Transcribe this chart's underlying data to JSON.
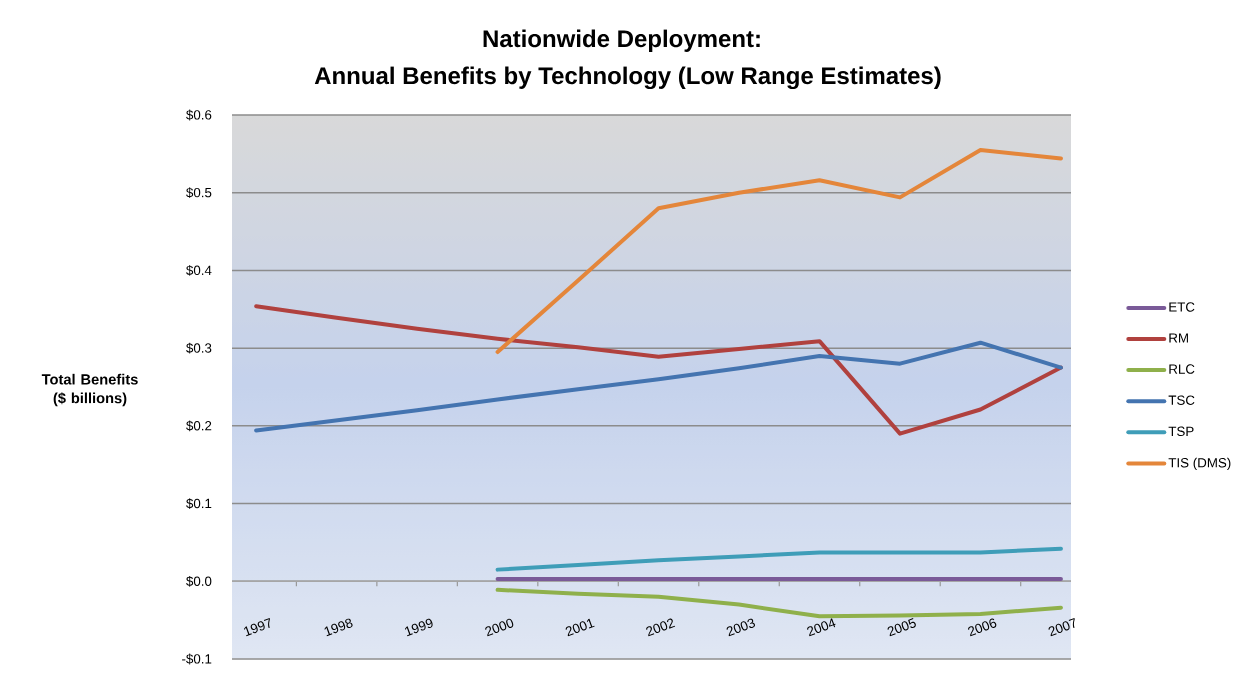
{
  "chart_data": {
    "type": "line",
    "title": "Nationwide Deployment:",
    "subtitle": "Annual Benefits by Technology (Low Range Estimates)",
    "ylabel": "Total Benefits ($ billions)",
    "categories": [
      "1997",
      "1998",
      "1999",
      "2000",
      "2001",
      "2002",
      "2003",
      "2004",
      "2005",
      "2006",
      "2007"
    ],
    "series": [
      {
        "name": "ETC",
        "color": "#7a5a98",
        "values": [
          null,
          null,
          null,
          0.003,
          0.003,
          0.003,
          0.003,
          0.003,
          0.003,
          0.003,
          0.003
        ]
      },
      {
        "name": "RM",
        "color": "#b0413e",
        "values": [
          0.354,
          0.339,
          0.325,
          0.312,
          0.301,
          0.289,
          0.299,
          0.309,
          0.19,
          0.221,
          0.275
        ]
      },
      {
        "name": "RLC",
        "color": "#8fb04b",
        "values": [
          null,
          null,
          null,
          -0.011,
          -0.016,
          -0.02,
          -0.03,
          -0.045,
          -0.044,
          -0.042,
          -0.034
        ]
      },
      {
        "name": "TSC",
        "color": "#4474b0",
        "values": [
          0.194,
          0.207,
          0.22,
          0.234,
          0.247,
          0.26,
          0.274,
          0.29,
          0.28,
          0.307,
          0.275
        ]
      },
      {
        "name": "TSP",
        "color": "#3f9db8",
        "values": [
          null,
          null,
          null,
          0.015,
          0.021,
          0.027,
          0.032,
          0.037,
          0.037,
          0.037,
          0.042
        ]
      },
      {
        "name": "TIS (DMS)",
        "color": "#e4863a",
        "values": [
          null,
          null,
          null,
          0.295,
          0.387,
          0.48,
          0.5,
          0.516,
          0.494,
          0.555,
          0.544
        ]
      }
    ],
    "ylim": [
      -0.1,
      0.6
    ],
    "yticks": [
      {
        "value": -0.1,
        "label": "-$0.1"
      },
      {
        "value": 0.0,
        "label": "$0.0"
      },
      {
        "value": 0.1,
        "label": "$0.1"
      },
      {
        "value": 0.2,
        "label": "$0.2"
      },
      {
        "value": 0.3,
        "label": "$0.3"
      },
      {
        "value": 0.4,
        "label": "$0.4"
      },
      {
        "value": 0.5,
        "label": "$0.5"
      },
      {
        "value": 0.6,
        "label": "$0.6"
      }
    ],
    "grid": "y",
    "legend": "right"
  }
}
